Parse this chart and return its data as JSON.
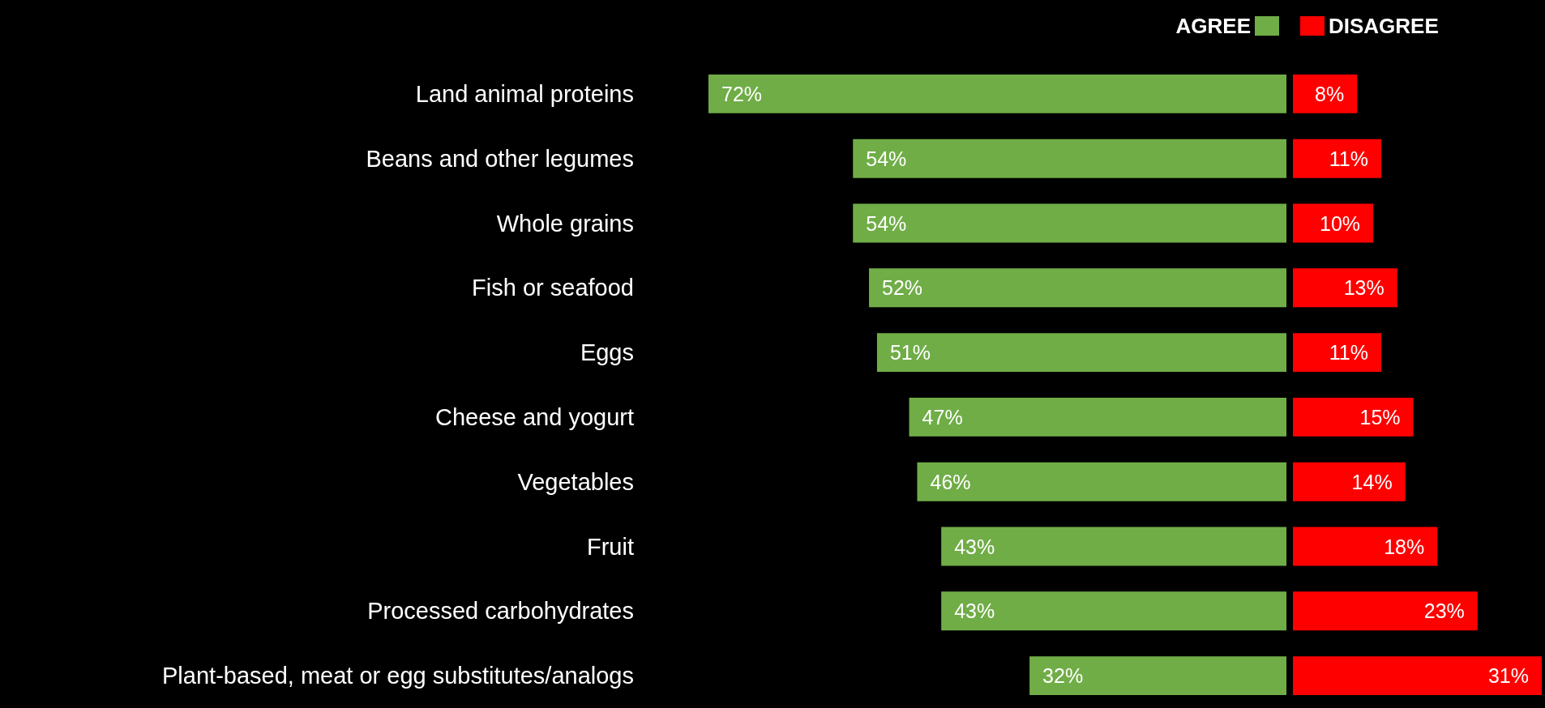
{
  "chart_data": [
    {
      "type": "bar",
      "orientation": "horizontal",
      "legend": "top right",
      "xlim": [
        72,
        0
      ],
      "categories": [
        "Land animal proteins",
        "Beans and other legumes",
        "Whole grains",
        "Fish or seafood",
        "Eggs",
        "Cheese and yogurt",
        "Vegetables",
        "Fruit",
        "Processed carbohydrates",
        "Plant-based, meat or egg substitutes/analogs"
      ],
      "series": [
        {
          "name": "AGREE",
          "color": "#70ad47",
          "values": [
            72,
            54,
            54,
            52,
            51,
            47,
            46,
            43,
            43,
            32
          ],
          "value_labels": [
            "72%",
            "54%",
            "54%",
            "52%",
            "51%",
            "47%",
            "46%",
            "43%",
            "43%",
            "32%"
          ]
        }
      ]
    },
    {
      "type": "bar",
      "orientation": "horizontal",
      "legend": "top left",
      "xlim": [
        0,
        31
      ],
      "categories": [
        null,
        null,
        null,
        null,
        null,
        null,
        null,
        null,
        null,
        null
      ],
      "series": [
        {
          "name": "DISAGREE",
          "color": "#ff0000",
          "values": [
            8,
            11,
            10,
            13,
            11,
            15,
            14,
            18,
            23,
            31
          ],
          "value_labels": [
            "8%",
            "11%",
            "10%",
            "13%",
            "11%",
            "15%",
            "14%",
            "18%",
            "23%",
            "31%"
          ]
        }
      ]
    }
  ]
}
